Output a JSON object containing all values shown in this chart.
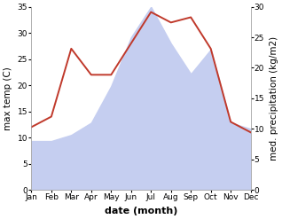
{
  "months": [
    "Jan",
    "Feb",
    "Mar",
    "Apr",
    "May",
    "Jun",
    "Jul",
    "Aug",
    "Sep",
    "Oct",
    "Nov",
    "Dec"
  ],
  "temperature": [
    12,
    14,
    27,
    22,
    22,
    28,
    34,
    32,
    33,
    27,
    13,
    11
  ],
  "precipitation": [
    8,
    8,
    9,
    11,
    17,
    25,
    30,
    24,
    19,
    23,
    11,
    10
  ],
  "temp_color": "#c0392b",
  "precip_fill_color": "#c5cef0",
  "temp_ylim": [
    0,
    35
  ],
  "precip_ylim": [
    0,
    30
  ],
  "temp_yticks": [
    0,
    5,
    10,
    15,
    20,
    25,
    30,
    35
  ],
  "precip_yticks": [
    0,
    5,
    10,
    15,
    20,
    25,
    30
  ],
  "xlabel": "date (month)",
  "ylabel_left": "max temp (C)",
  "ylabel_right": "med. precipitation (kg/m2)",
  "background_color": "#ffffff",
  "label_fontsize": 7.5,
  "tick_fontsize": 6.5,
  "xlabel_fontsize": 8,
  "linewidth": 1.4
}
